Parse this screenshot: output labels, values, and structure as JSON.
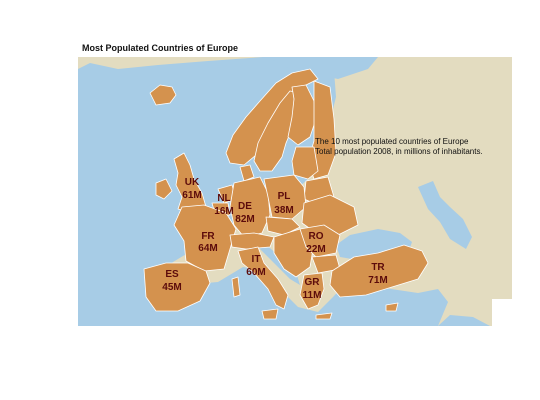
{
  "title": "Most Populated Countries of Europe",
  "annotation": {
    "line1": "The 10 most populated countries of Europe",
    "line2": "Total population 2008, in millions of inhabitants."
  },
  "colors": {
    "land_highlight": "#d4924e",
    "land_other": "#e3dcc0",
    "sea": "#a7cce6",
    "label_text": "#5c0b0b"
  },
  "countries": [
    {
      "code": "UK",
      "population_label": "61M",
      "population_millions": 61
    },
    {
      "code": "NL",
      "population_label": "16M",
      "population_millions": 16
    },
    {
      "code": "DE",
      "population_label": "82M",
      "population_millions": 82
    },
    {
      "code": "PL",
      "population_label": "38M",
      "population_millions": 38
    },
    {
      "code": "FR",
      "population_label": "64M",
      "population_millions": 64
    },
    {
      "code": "RO",
      "population_label": "22M",
      "population_millions": 22
    },
    {
      "code": "IT",
      "population_label": "60M",
      "population_millions": 60
    },
    {
      "code": "ES",
      "population_label": "45M",
      "population_millions": 45
    },
    {
      "code": "GR",
      "population_label": "11M",
      "population_millions": 11
    },
    {
      "code": "TR",
      "population_label": "71M",
      "population_millions": 71
    }
  ]
}
